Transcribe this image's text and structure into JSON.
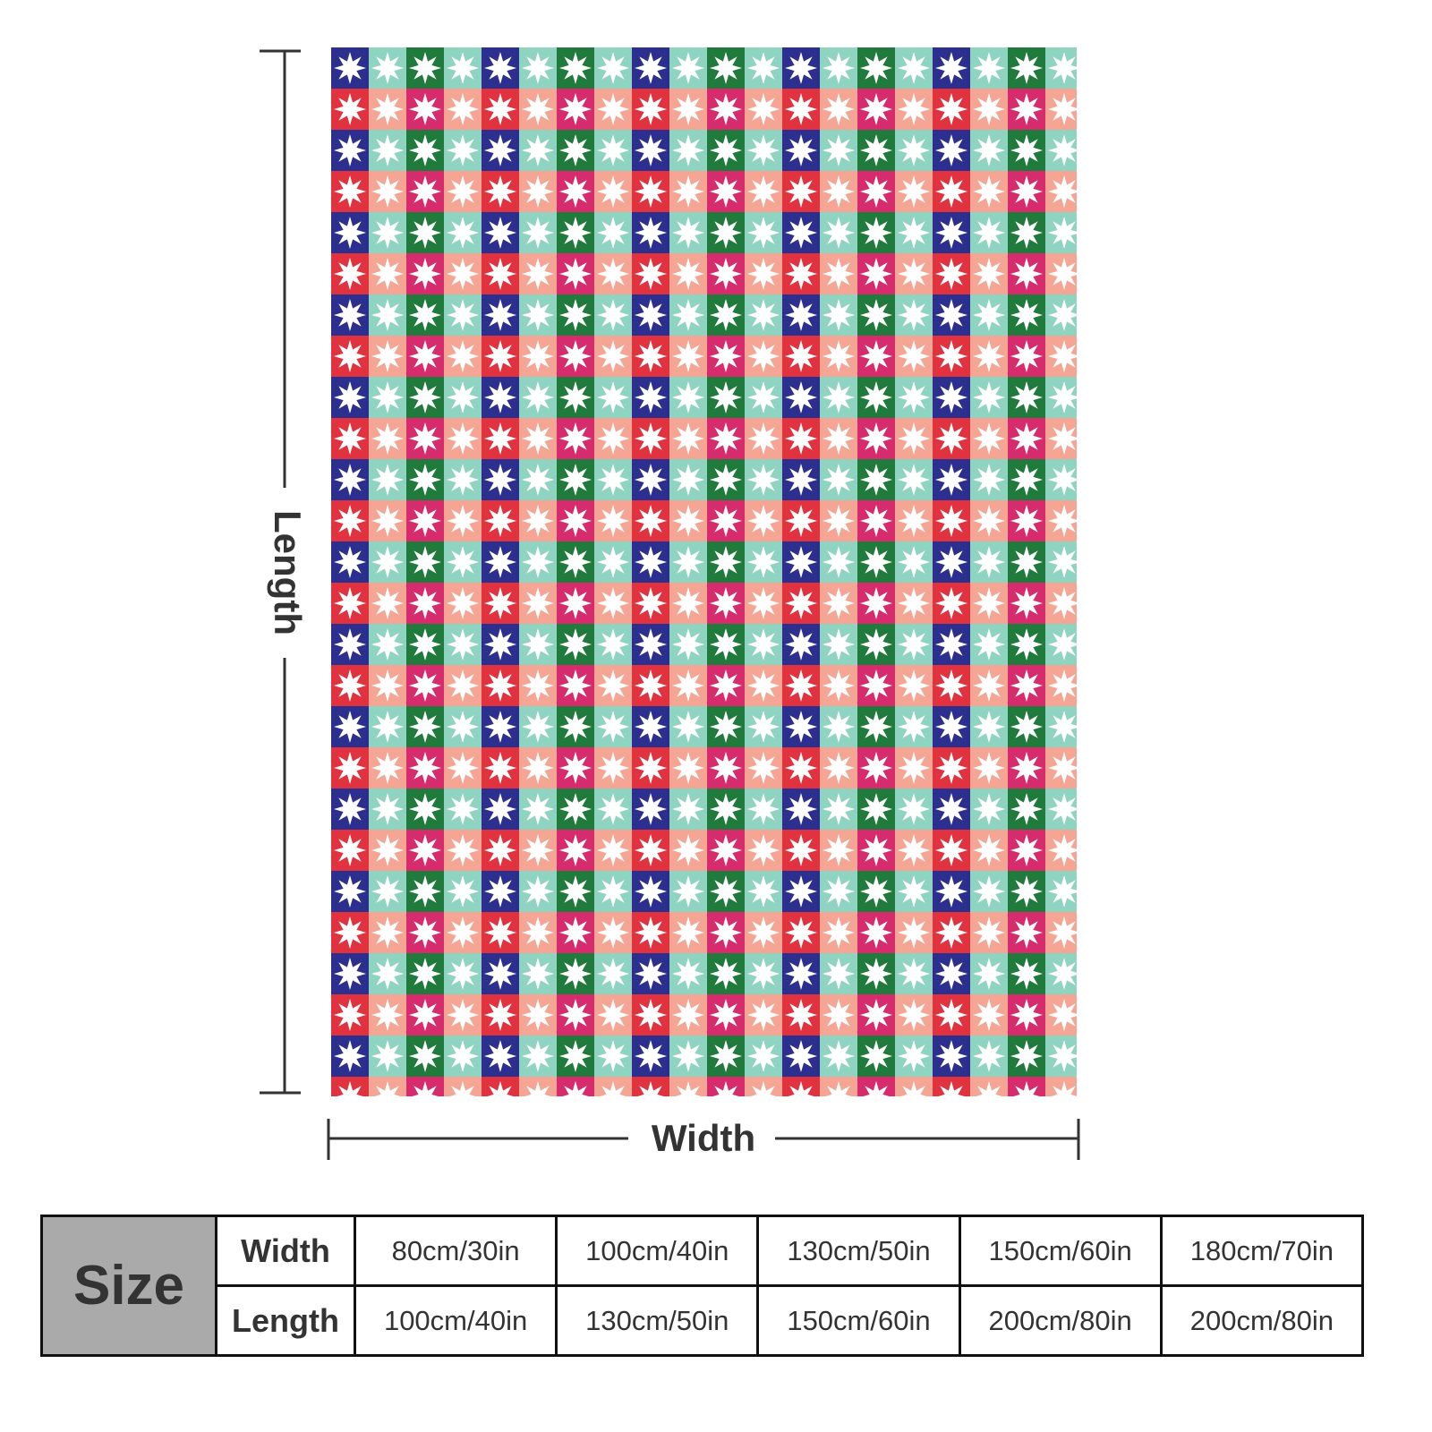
{
  "dimensions": {
    "length": "Length",
    "width": "Width"
  },
  "size_table": {
    "header": "Size",
    "rows": [
      {
        "label": "Width",
        "cells": [
          "80cm/30in",
          "100cm/40in",
          "130cm/50in",
          "150cm/60in",
          "180cm/70in"
        ]
      },
      {
        "label": "Length",
        "cells": [
          "100cm/40in",
          "130cm/50in",
          "150cm/60in",
          "200cm/80in",
          "200cm/80in"
        ]
      }
    ]
  }
}
